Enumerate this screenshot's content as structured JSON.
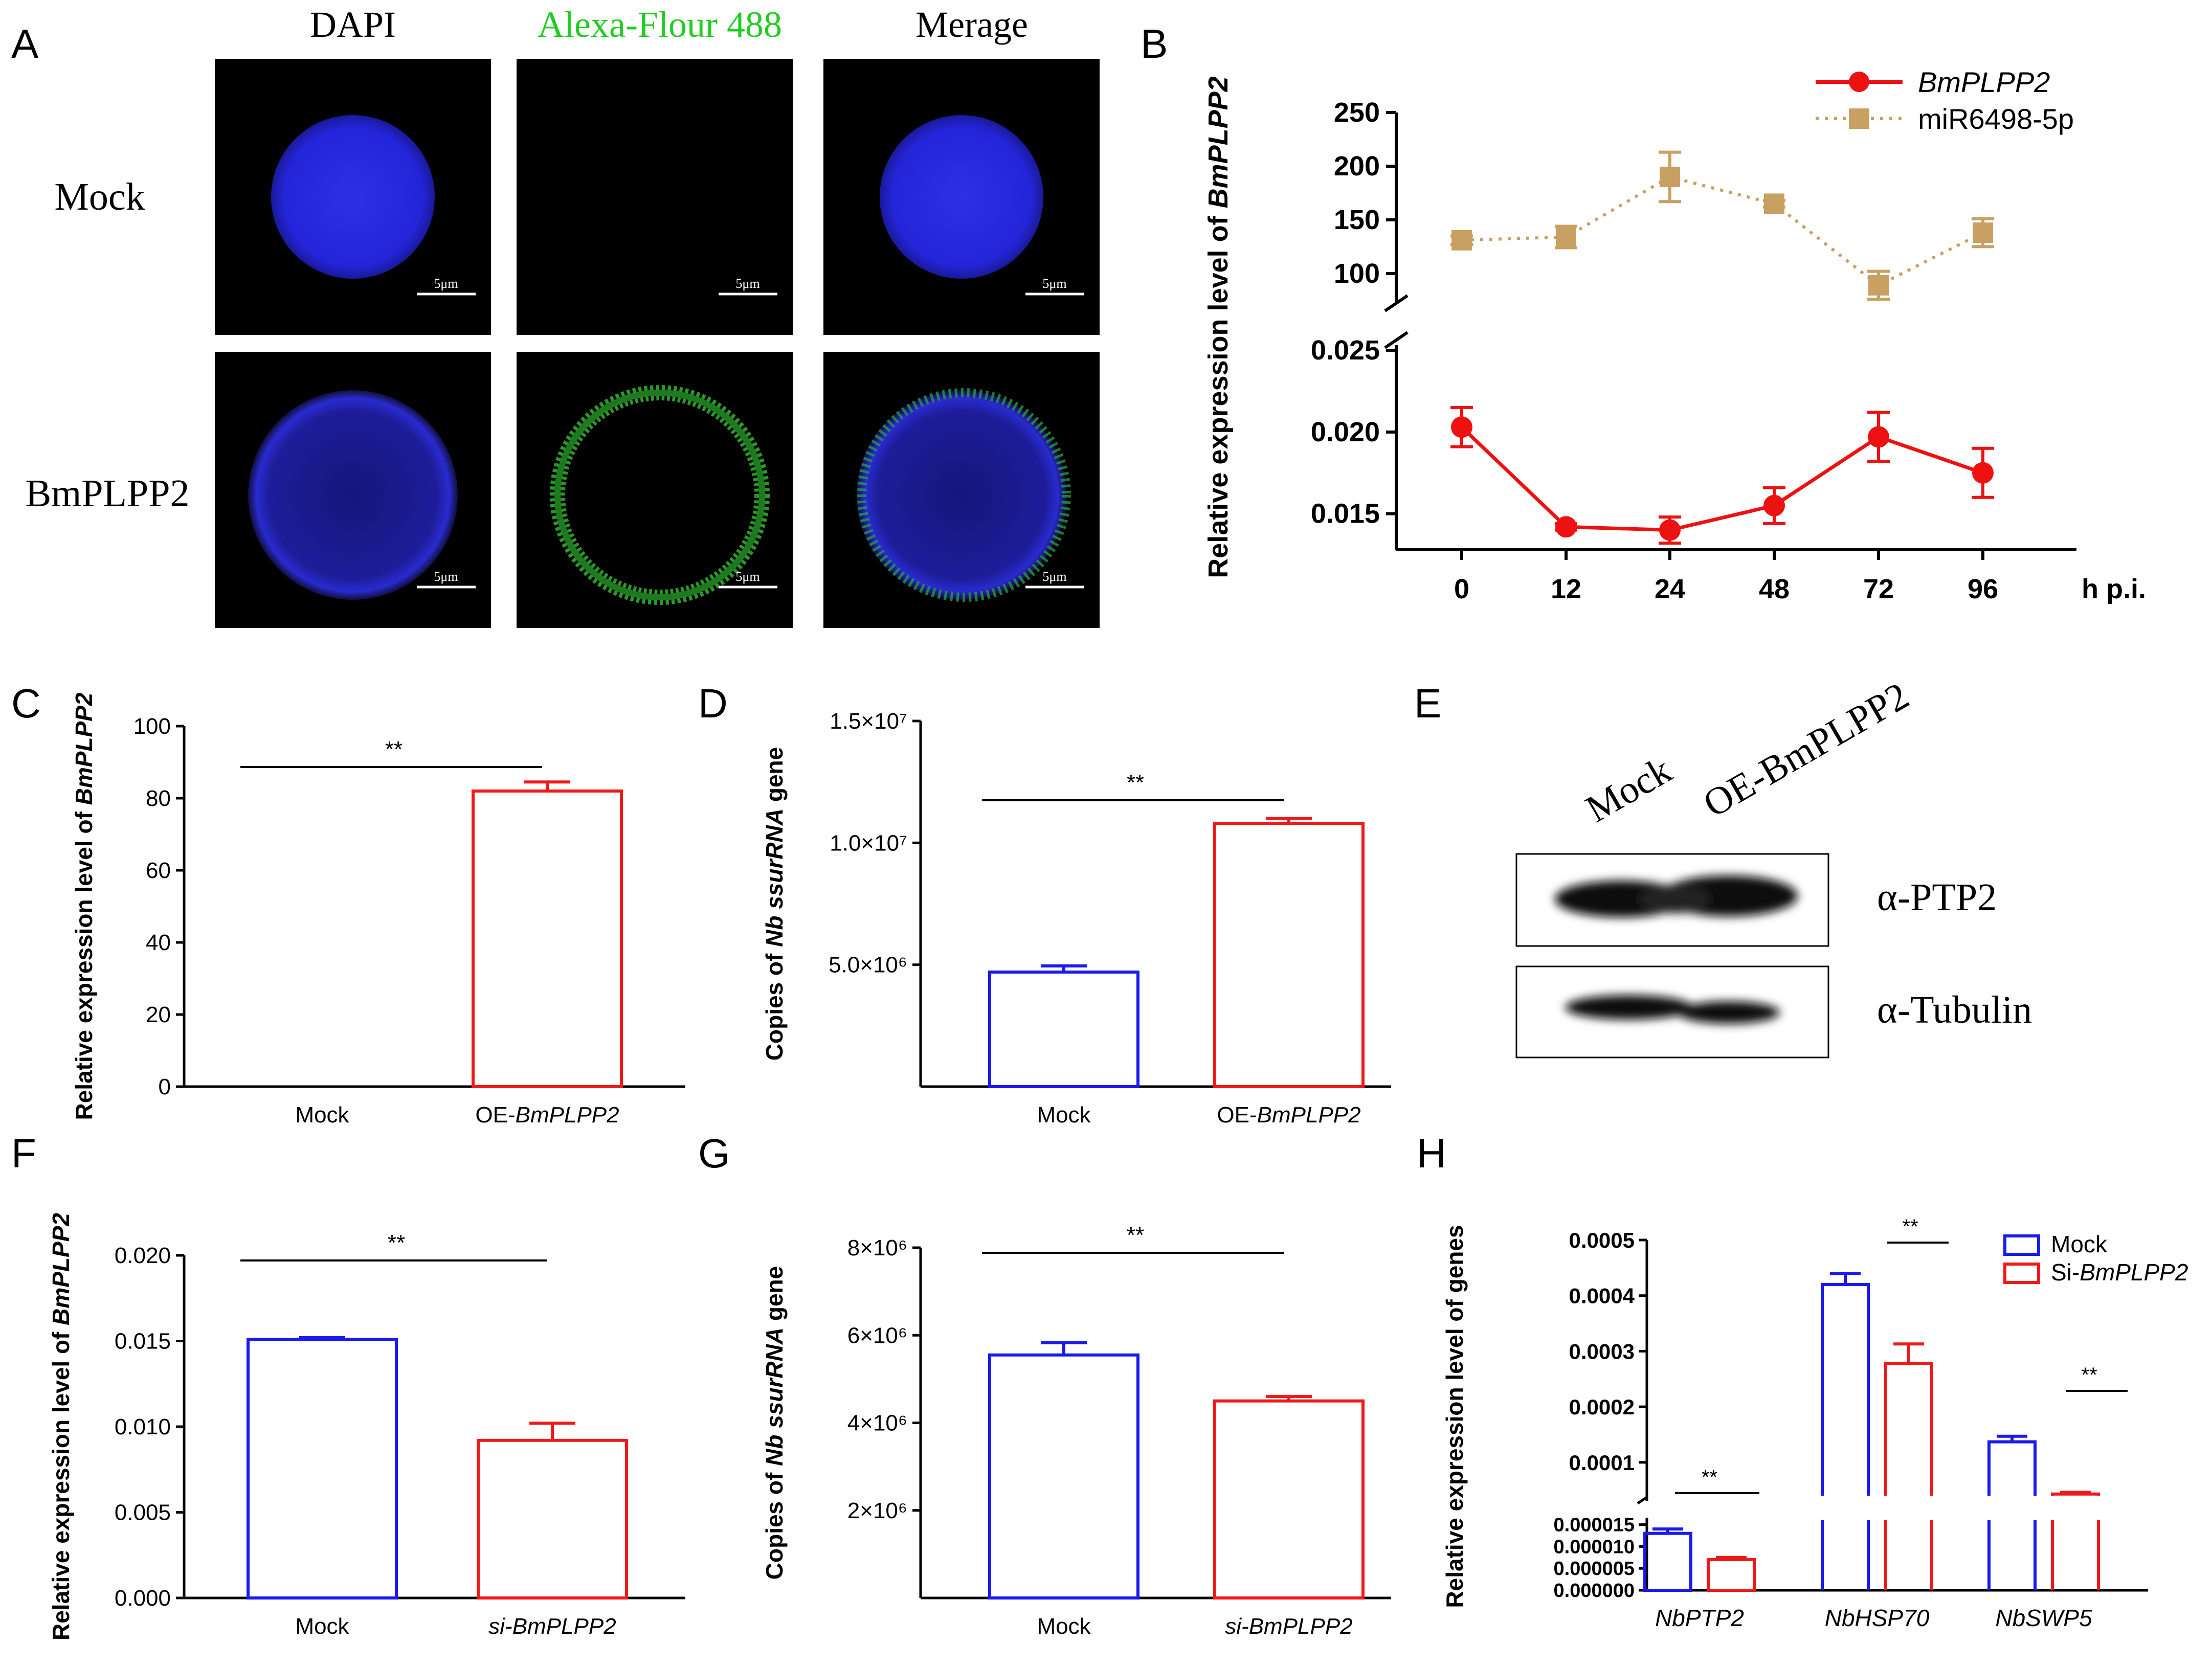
{
  "panel_labels": {
    "A": "A",
    "B": "B",
    "C": "C",
    "D": "D",
    "E": "E",
    "F": "F",
    "G": "G",
    "H": "H"
  },
  "panelA": {
    "columns": [
      "DAPI",
      "Alexa-Flour  488",
      "Merage"
    ],
    "column_colors": [
      "#000000",
      "#22cc22",
      "#000000"
    ],
    "rows": [
      "Mock",
      "BmPLPP2"
    ],
    "scale_bar": "5μm",
    "cells": [
      {
        "row": "Mock",
        "col": "DAPI",
        "stain": "blue-filled"
      },
      {
        "row": "Mock",
        "col": "Alexa",
        "stain": "none"
      },
      {
        "row": "Mock",
        "col": "Merge",
        "stain": "blue-filled"
      },
      {
        "row": "BmPLPP2",
        "col": "DAPI",
        "stain": "blue-ring"
      },
      {
        "row": "BmPLPP2",
        "col": "Alexa",
        "stain": "green-ring"
      },
      {
        "row": "BmPLPP2",
        "col": "Merge",
        "stain": "blue-green-ring"
      }
    ]
  },
  "panelE": {
    "lanes": [
      "Mock",
      "OE-BmPLPP2"
    ],
    "bands": [
      "α-PTP2",
      "α-Tubulin"
    ]
  },
  "chart_data": [
    {
      "id": "B",
      "type": "line",
      "ylabel_prefix": "Relative expression level of ",
      "ylabel_gene": "BmPLPP2",
      "x_unit": "h p.i.",
      "categories": [
        "0",
        "12",
        "24",
        "48",
        "72",
        "96"
      ],
      "broken_axis": true,
      "upper": {
        "yticks": [
          "100",
          "150",
          "200",
          "250"
        ],
        "ylim": [
          88,
          250
        ]
      },
      "lower": {
        "yticks": [
          "0.015",
          "0.020",
          "0.025"
        ],
        "ylim": [
          0.0128,
          0.025
        ]
      },
      "series": [
        {
          "name": "BmPLPP2",
          "color": "#ee1111",
          "style": "solid",
          "marker": "circle",
          "segment": "lower",
          "values": [
            0.0203,
            0.0142,
            0.014,
            0.0155,
            0.0197,
            0.0175
          ],
          "errors": [
            0.0012,
            0.0002,
            0.0008,
            0.0011,
            0.0015,
            0.0015
          ]
        },
        {
          "name": "miR6498-5p",
          "color": "#c8a062",
          "style": "dotted",
          "marker": "square",
          "segment": "upper",
          "values": [
            131,
            134,
            190,
            165,
            89,
            138
          ],
          "errors": [
            4,
            10,
            23,
            3,
            13,
            13
          ]
        }
      ]
    },
    {
      "id": "C",
      "type": "bar",
      "ylabel_prefix": "Relative expression level  of ",
      "ylabel_gene": "BmPLPP2",
      "categories": [
        "Mock",
        "OE-BmPLPP2"
      ],
      "category_parts": [
        {
          "plain": "Mock",
          "italic": ""
        },
        {
          "plain": "OE-",
          "italic": "BmPLPP2"
        }
      ],
      "values": [
        0,
        82
      ],
      "errors": [
        0,
        2.5
      ],
      "colors": [
        "#1a1aee",
        "#ee1a1a"
      ],
      "ylim": [
        0,
        100
      ],
      "yticks": [
        "0",
        "20",
        "40",
        "60",
        "80",
        "100"
      ],
      "significance": "**"
    },
    {
      "id": "D",
      "type": "bar",
      "ylabel_prefix": "Copies of ",
      "ylabel_gene": "Nb ssurRNA",
      "ylabel_suffix": " gene",
      "categories": [
        "Mock",
        "OE-BmPLPP2"
      ],
      "category_parts": [
        {
          "plain": "Mock",
          "italic": ""
        },
        {
          "plain": "OE-",
          "italic": "BmPLPP2"
        }
      ],
      "values": [
        4700000,
        10800000
      ],
      "errors": [
        250000,
        200000
      ],
      "colors": [
        "#1a1aee",
        "#ee1a1a"
      ],
      "ylim": [
        0,
        15000000
      ],
      "yticks": [
        "5.0×10⁶",
        "1.0×10⁷",
        "1.5×10⁷"
      ],
      "significance": "**"
    },
    {
      "id": "F",
      "type": "bar",
      "ylabel_prefix": "Relative expression level  of ",
      "ylabel_gene": "BmPLPP2",
      "categories": [
        "Mock",
        "si-BmPLPP2"
      ],
      "category_parts": [
        {
          "plain": "Mock",
          "italic": ""
        },
        {
          "plain": "",
          "italic": "si-BmPLPP2"
        }
      ],
      "values": [
        0.0151,
        0.0092
      ],
      "errors": [
        0.0001,
        0.001
      ],
      "colors": [
        "#1a1aee",
        "#ee1a1a"
      ],
      "ylim": [
        0,
        0.02
      ],
      "yticks": [
        "0.000",
        "0.005",
        "0.010",
        "0.015",
        "0.020"
      ],
      "significance": "**"
    },
    {
      "id": "G",
      "type": "bar",
      "ylabel_prefix": "Copies of ",
      "ylabel_gene": "Nb ssurRNA",
      "ylabel_suffix": " gene",
      "categories": [
        "Mock",
        "si-BmPLPP2"
      ],
      "category_parts": [
        {
          "plain": "Mock",
          "italic": ""
        },
        {
          "plain": "",
          "italic": "si-BmPLPP2"
        }
      ],
      "values": [
        5550000,
        4500000
      ],
      "errors": [
        280000,
        100000
      ],
      "colors": [
        "#1a1aee",
        "#ee1a1a"
      ],
      "ylim": [
        0,
        8000000
      ],
      "yticks": [
        "2×10⁶",
        "4×10⁶",
        "6×10⁶",
        "8×10⁶"
      ],
      "significance": "**"
    },
    {
      "id": "H",
      "type": "bar",
      "ylabel": "Relative expression level of genes",
      "categories": [
        "NbPTP2",
        "NbHSP70",
        "NbSWP5"
      ],
      "broken_axis": true,
      "upper": {
        "yticks": [
          "0.0001",
          "0.0002",
          "0.0003",
          "0.0004",
          "0.0005"
        ],
        "ylim": [
          4e-05,
          0.0005
        ]
      },
      "lower": {
        "yticks": [
          "0.000000",
          "0.000005",
          "0.000010",
          "0.000015"
        ],
        "ylim": [
          0,
          1.6e-05
        ]
      },
      "series": [
        {
          "name_plain": "Mock",
          "name_italic": "",
          "color": "#1a1aee",
          "values": [
            1.3e-05,
            0.00042,
            0.000137
          ],
          "errors": [
            1e-06,
            2e-05,
            1e-05
          ]
        },
        {
          "name_plain": "Si-",
          "name_italic": "BmPLPP2",
          "color": "#ee1a1a",
          "values": [
            7e-06,
            0.000278,
            4.3e-05
          ],
          "errors": [
            5e-07,
            3.5e-05,
            3e-06
          ]
        }
      ],
      "significance": [
        "**",
        "**",
        "**"
      ]
    }
  ]
}
